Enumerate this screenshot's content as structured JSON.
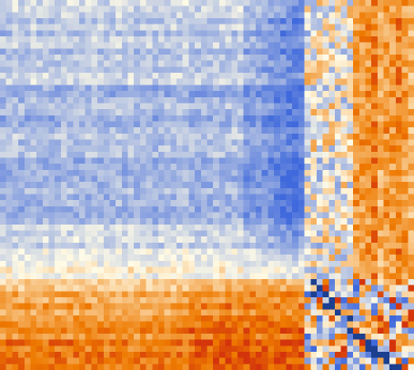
{
  "chart_data": {
    "type": "heatmap",
    "rows": 61,
    "cols": 68,
    "value_range": [
      -1,
      1
    ],
    "colormap": {
      "low": "#3f69dc",
      "mid": "#fffbe6",
      "high": "#ee7a00",
      "peak": "#d4340c",
      "cross_dark": "#1c3f8f"
    },
    "title": "",
    "xlabel": "",
    "ylabel": "",
    "legend": "none",
    "grid": false,
    "blocks": {
      "row_break": 46,
      "col_break": 50,
      "far_col_break": 58,
      "dark_band_rows": [
        14,
        36
      ],
      "deep_col_band": [
        40,
        50
      ]
    }
  }
}
